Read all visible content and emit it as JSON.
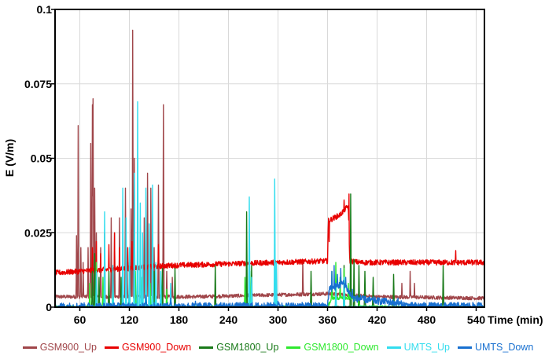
{
  "chart_data": {
    "type": "line",
    "xlabel": "Time (min)",
    "ylabel": "E (V/m)",
    "xlim": [
      30,
      550
    ],
    "ylim": [
      0,
      0.1
    ],
    "x_ticks": [
      60,
      120,
      180,
      240,
      300,
      360,
      420,
      480,
      540
    ],
    "y_ticks": [
      {
        "value": 0,
        "label": "0"
      },
      {
        "value": 0.025,
        "label": "0.025"
      },
      {
        "value": 0.05,
        "label": "0.05"
      },
      {
        "value": 0.075,
        "label": "0.075"
      },
      {
        "value": 0.1,
        "label": "0.1"
      }
    ],
    "grid": true,
    "legend_position": "bottom",
    "series": [
      {
        "name": "GSM900_Up",
        "color": "#a0464a",
        "baseline": [
          [
            30,
            0.0035
          ],
          [
            200,
            0.0035
          ],
          [
            360,
            0.0045
          ],
          [
            420,
            0.0035
          ],
          [
            550,
            0.003
          ]
        ],
        "noise": 0.0006,
        "spikes": [
          [
            56,
            0.024
          ],
          [
            58,
            0.061
          ],
          [
            61,
            0.02
          ],
          [
            64,
            0.015
          ],
          [
            70,
            0.02
          ],
          [
            73,
            0.055
          ],
          [
            75,
            0.068
          ],
          [
            76,
            0.07
          ],
          [
            78,
            0.04
          ],
          [
            80,
            0.025
          ],
          [
            85,
            0.02
          ],
          [
            90,
            0.025
          ],
          [
            98,
            0.03
          ],
          [
            102,
            0.025
          ],
          [
            108,
            0.03
          ],
          [
            115,
            0.04
          ],
          [
            117,
            0.015
          ],
          [
            122,
            0.033
          ],
          [
            124,
            0.093
          ],
          [
            126,
            0.05
          ],
          [
            130,
            0.01
          ],
          [
            138,
            0.03
          ],
          [
            142,
            0.045
          ],
          [
            146,
            0.04
          ],
          [
            150,
            0.02
          ],
          [
            155,
            0.041
          ],
          [
            161,
            0.068
          ],
          [
            165,
            0.012
          ],
          [
            172,
            0.01
          ],
          [
            265,
            0.02
          ],
          [
            330,
            0.016
          ],
          [
            450,
            0.008
          ],
          [
            460,
            0.012
          ],
          [
            465,
            0.008
          ]
        ]
      },
      {
        "name": "GSM900_Down",
        "color": "#e80000",
        "baseline": [
          [
            30,
            0.0115
          ],
          [
            170,
            0.014
          ],
          [
            360,
            0.0155
          ],
          [
            361,
            0.029
          ],
          [
            375,
            0.031
          ],
          [
            385,
            0.034
          ],
          [
            387,
            0.0155
          ],
          [
            400,
            0.015
          ],
          [
            550,
            0.015
          ]
        ],
        "noise": 0.0009,
        "spikes": [
          [
            75,
            0.02
          ],
          [
            80,
            0.022
          ],
          [
            85,
            0.018
          ],
          [
            95,
            0.021
          ],
          [
            102,
            0.025
          ],
          [
            108,
            0.02
          ],
          [
            112,
            0.018
          ],
          [
            118,
            0.02
          ],
          [
            123,
            0.022
          ],
          [
            130,
            0.019
          ],
          [
            140,
            0.022
          ],
          [
            148,
            0.018
          ],
          [
            155,
            0.021
          ],
          [
            362,
            0.022
          ],
          [
            380,
            0.036
          ],
          [
            386,
            0.038
          ],
          [
            515,
            0.019
          ]
        ]
      },
      {
        "name": "GSM1800_Up",
        "color": "#1a7a1a",
        "baseline": [
          [
            30,
            0
          ],
          [
            550,
            0
          ]
        ],
        "noise": 0.0003,
        "spikes": [
          [
            75,
            0.012
          ],
          [
            78,
            0.018
          ],
          [
            83,
            0.01
          ],
          [
            90,
            0.01
          ],
          [
            95,
            0.012
          ],
          [
            110,
            0.01
          ],
          [
            120,
            0.015
          ],
          [
            130,
            0.014
          ],
          [
            140,
            0.01
          ],
          [
            150,
            0.012
          ],
          [
            160,
            0.013
          ],
          [
            175,
            0.013
          ],
          [
            224,
            0.014
          ],
          [
            262,
            0.032
          ],
          [
            265,
            0.024
          ],
          [
            268,
            0.014
          ],
          [
            340,
            0.012
          ],
          [
            380,
            0.014
          ],
          [
            388,
            0.038
          ],
          [
            392,
            0.016
          ],
          [
            398,
            0.014
          ],
          [
            405,
            0.012
          ],
          [
            415,
            0.01
          ],
          [
            440,
            0.011
          ],
          [
            500,
            0.014
          ]
        ]
      },
      {
        "name": "GSM1800_Down",
        "color": "#2ee82e",
        "baseline": [
          [
            30,
            0
          ],
          [
            360,
            0
          ],
          [
            365,
            0.003
          ],
          [
            395,
            0.003
          ],
          [
            400,
            0
          ],
          [
            550,
            0
          ]
        ],
        "noise": 0.0005,
        "spikes": [
          [
            72,
            0.008
          ],
          [
            80,
            0.015
          ],
          [
            88,
            0.01
          ],
          [
            100,
            0.012
          ],
          [
            112,
            0.01
          ],
          [
            127,
            0.012
          ],
          [
            135,
            0.01
          ],
          [
            145,
            0.008
          ],
          [
            165,
            0.006
          ],
          [
            260,
            0.01
          ],
          [
            266,
            0.012
          ],
          [
            365,
            0.012
          ],
          [
            370,
            0.015
          ],
          [
            375,
            0.01
          ],
          [
            380,
            0.013
          ],
          [
            385,
            0.008
          ]
        ]
      },
      {
        "name": "UMTS_Up",
        "color": "#33ddee",
        "baseline": [
          [
            30,
            0
          ],
          [
            550,
            0
          ]
        ],
        "noise": 0.0003,
        "spikes": [
          [
            80,
            0.012
          ],
          [
            90,
            0.032
          ],
          [
            100,
            0.014
          ],
          [
            112,
            0.04
          ],
          [
            116,
            0.03
          ],
          [
            120,
            0.02
          ],
          [
            126,
            0.045
          ],
          [
            130,
            0.069
          ],
          [
            133,
            0.035
          ],
          [
            136,
            0.025
          ],
          [
            140,
            0.04
          ],
          [
            144,
            0.028
          ],
          [
            148,
            0.041
          ],
          [
            152,
            0.015
          ],
          [
            158,
            0.012
          ],
          [
            170,
            0.008
          ],
          [
            265,
            0.037
          ],
          [
            268,
            0.01
          ],
          [
            296,
            0.043
          ],
          [
            298,
            0.015
          ],
          [
            370,
            0.008
          ],
          [
            380,
            0.01
          ]
        ]
      },
      {
        "name": "UMTS_Down",
        "color": "#1870d0",
        "baseline": [
          [
            30,
            0.0003
          ],
          [
            360,
            0.0004
          ],
          [
            362,
            0.006
          ],
          [
            380,
            0.008
          ],
          [
            390,
            0.003
          ],
          [
            440,
            0.0015
          ],
          [
            460,
            0.0004
          ],
          [
            550,
            0.0004
          ]
        ],
        "noise": 0.0012,
        "spikes": [
          [
            140,
            0.004
          ],
          [
            170,
            0.003
          ],
          [
            200,
            0.002
          ],
          [
            300,
            0.002
          ],
          [
            365,
            0.012
          ],
          [
            368,
            0.014
          ],
          [
            372,
            0.011
          ],
          [
            376,
            0.013
          ],
          [
            382,
            0.01
          ],
          [
            390,
            0.006
          ],
          [
            400,
            0.004
          ],
          [
            410,
            0.003
          ],
          [
            430,
            0.003
          ],
          [
            445,
            0.003
          ]
        ]
      }
    ]
  }
}
